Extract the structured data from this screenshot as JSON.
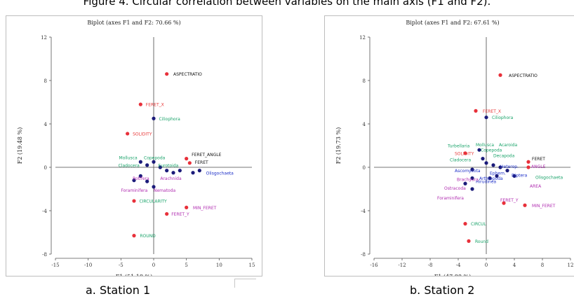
{
  "figure_caption": "Figure 4. Circular correlation between variables on the main axis (F1 and F2).",
  "subcaptions": [
    "a. Station 1",
    "b. Station 2"
  ],
  "colors": {
    "observations": "#e8303a",
    "dark_points": "#1b1b7a",
    "label_black": "#111111",
    "label_red": "#e83a3a",
    "label_green": "#1aa36a",
    "label_blue": "#1c2fc8",
    "label_magenta": "#b02cb0",
    "axis": "#555555",
    "ref_line": "#4a4a4a"
  },
  "chart_data": [
    {
      "type": "scatter",
      "title": "Biplot (axes F1 and F2: 70.66 %)",
      "xlabel": "F1 (51.18 %)",
      "ylabel": "F2 (19.48 %)",
      "xlim": [
        -15,
        15
      ],
      "ylim": [
        -8,
        12
      ],
      "xticks": [
        "-15",
        "-10",
        "-5",
        "0",
        "5",
        "10",
        "15"
      ],
      "yticks": [
        "-8",
        "-4",
        "0",
        "4",
        "8",
        "12"
      ],
      "series": [
        {
          "kind": "observations",
          "points": [
            {
              "x": 2,
              "y": 8.6
            },
            {
              "x": -2,
              "y": 5.8
            },
            {
              "x": -4,
              "y": 3.1
            },
            {
              "x": 5,
              "y": 0.8
            },
            {
              "x": 5.5,
              "y": 0.4
            },
            {
              "x": -3,
              "y": -3.1
            },
            {
              "x": 5,
              "y": -3.7
            },
            {
              "x": 2,
              "y": -4.3
            },
            {
              "x": -3,
              "y": -6.3
            }
          ]
        },
        {
          "kind": "variables",
          "points": [
            {
              "x": 0,
              "y": 4.5
            },
            {
              "x": -2,
              "y": 0.5
            },
            {
              "x": -1,
              "y": 0.2
            },
            {
              "x": 0,
              "y": 0.5
            },
            {
              "x": 1,
              "y": 0
            },
            {
              "x": 2,
              "y": -0.3
            },
            {
              "x": -2,
              "y": -0.8
            },
            {
              "x": -3,
              "y": -1.2
            },
            {
              "x": -1,
              "y": -1.3
            },
            {
              "x": 3,
              "y": -0.5
            },
            {
              "x": 4,
              "y": -0.3
            },
            {
              "x": 6,
              "y": -0.5
            },
            {
              "x": 7,
              "y": -0.3
            },
            {
              "x": 0,
              "y": -1.8
            }
          ]
        }
      ],
      "labels": [
        {
          "text": "ASPECTRATIO",
          "x": 3,
          "y": 8.6,
          "color": "black"
        },
        {
          "text": "FERET_X",
          "x": -1.2,
          "y": 5.8,
          "color": "red"
        },
        {
          "text": "Ciliophora",
          "x": 0.8,
          "y": 4.5,
          "color": "green"
        },
        {
          "text": "SOLIDITY",
          "x": -3.2,
          "y": 3.1,
          "color": "red"
        },
        {
          "text": "FERET_ANGLE",
          "x": 5.8,
          "y": 1.2,
          "color": "black"
        },
        {
          "text": "FERET",
          "x": 6.3,
          "y": 0.5,
          "color": "black"
        },
        {
          "text": "Mollusca",
          "x": -5.3,
          "y": 0.9,
          "color": "green"
        },
        {
          "text": "Copepoda",
          "x": -1.5,
          "y": 0.9,
          "color": "green"
        },
        {
          "text": "Cladocera",
          "x": -5.4,
          "y": 0.2,
          "color": "green"
        },
        {
          "text": "Eurotoida",
          "x": 0.7,
          "y": 0.2,
          "color": "green"
        },
        {
          "text": "Olisgochaeta",
          "x": 8,
          "y": -0.5,
          "color": "blue"
        },
        {
          "text": "Rotifera",
          "x": -3.2,
          "y": -1.0,
          "color": "magenta"
        },
        {
          "text": "Arachnida",
          "x": 1,
          "y": -1.0,
          "color": "magenta"
        },
        {
          "text": "Foraminifera",
          "x": -5,
          "y": -2.1,
          "color": "magenta"
        },
        {
          "text": "Nematoda",
          "x": 0,
          "y": -2.1,
          "color": "magenta"
        },
        {
          "text": "CIRCULARITY",
          "x": -2.2,
          "y": -3.1,
          "color": "green"
        },
        {
          "text": "MIN_FERET",
          "x": 6,
          "y": -3.7,
          "color": "magenta"
        },
        {
          "text": "FERET_Y",
          "x": 2.7,
          "y": -4.3,
          "color": "magenta"
        },
        {
          "text": "ROUND",
          "x": -2.1,
          "y": -6.3,
          "color": "green"
        }
      ]
    },
    {
      "type": "scatter",
      "title": "Biplot (axes F1 and F2: 67.61 %)",
      "xlabel": "F1 (47.88 %)",
      "ylabel": "F2 (19.73 %)",
      "xlim": [
        -16,
        12
      ],
      "ylim": [
        -8,
        12
      ],
      "xticks": [
        "-16",
        "-12",
        "-8",
        "-4",
        "0",
        "4",
        "8",
        "12"
      ],
      "yticks": [
        "-8",
        "-4",
        "0",
        "4",
        "8",
        "12"
      ],
      "series": [
        {
          "kind": "observations",
          "points": [
            {
              "x": 2,
              "y": 8.5
            },
            {
              "x": -1.5,
              "y": 5.2
            },
            {
              "x": -3,
              "y": 1.3
            },
            {
              "x": 6,
              "y": 0.5
            },
            {
              "x": 6,
              "y": 0
            },
            {
              "x": 2.5,
              "y": -3.3
            },
            {
              "x": 5.5,
              "y": -3.5
            },
            {
              "x": -3,
              "y": -5.2
            },
            {
              "x": -2.5,
              "y": -6.8
            }
          ]
        },
        {
          "kind": "variables",
          "points": [
            {
              "x": 0,
              "y": 4.6
            },
            {
              "x": -1,
              "y": 1.6
            },
            {
              "x": -0.5,
              "y": 0.8
            },
            {
              "x": 0,
              "y": 0.4
            },
            {
              "x": 1,
              "y": 0.2
            },
            {
              "x": 2,
              "y": 0
            },
            {
              "x": 3,
              "y": -0.3
            },
            {
              "x": -2,
              "y": -0.2
            },
            {
              "x": -2,
              "y": -1
            },
            {
              "x": -3,
              "y": -1.5
            },
            {
              "x": -2,
              "y": -2
            },
            {
              "x": 0.5,
              "y": -1
            },
            {
              "x": 1.5,
              "y": -0.8
            },
            {
              "x": 4,
              "y": -0.8
            }
          ]
        }
      ],
      "labels": [
        {
          "text": "ASPECTRATIO",
          "x": 3.2,
          "y": 8.5,
          "color": "black"
        },
        {
          "text": "FERET_X",
          "x": -0.5,
          "y": 5.2,
          "color": "red"
        },
        {
          "text": "Ciliophora",
          "x": 0.8,
          "y": 4.6,
          "color": "green"
        },
        {
          "text": "Turbellaria",
          "x": -5.5,
          "y": 2.0,
          "color": "green"
        },
        {
          "text": "Mollusca",
          "x": -1.5,
          "y": 2.1,
          "color": "green"
        },
        {
          "text": "Acaroida",
          "x": 1.8,
          "y": 2.1,
          "color": "green"
        },
        {
          "text": "Copepoda",
          "x": -0.8,
          "y": 1.6,
          "color": "green"
        },
        {
          "text": "SOLIDITY",
          "x": -4.5,
          "y": 1.3,
          "color": "red"
        },
        {
          "text": "Decapoda",
          "x": 1.0,
          "y": 1.1,
          "color": "green"
        },
        {
          "text": "Cladocera",
          "x": -5.2,
          "y": 0.7,
          "color": "green"
        },
        {
          "text": "FERET",
          "x": 6.5,
          "y": 0.8,
          "color": "black"
        },
        {
          "text": "Heterop.",
          "x": 2.0,
          "y": 0.1,
          "color": "blue"
        },
        {
          "text": "ANGLE",
          "x": 6.4,
          "y": 0.1,
          "color": "magenta"
        },
        {
          "text": "Ascomycota",
          "x": -4.5,
          "y": -0.3,
          "color": "blue"
        },
        {
          "text": "Ephem.",
          "x": 0.5,
          "y": -0.5,
          "color": "blue"
        },
        {
          "text": "Arthropoda",
          "x": -1.0,
          "y": -1.0,
          "color": "blue"
        },
        {
          "text": "Diptera",
          "x": 3.6,
          "y": -0.7,
          "color": "blue"
        },
        {
          "text": "Olisgochaeta",
          "x": 7.0,
          "y": -0.9,
          "color": "green"
        },
        {
          "text": "Hirudinea",
          "x": -1.5,
          "y": -1.3,
          "color": "blue"
        },
        {
          "text": "Brachyura",
          "x": -4.2,
          "y": -1.1,
          "color": "magenta"
        },
        {
          "text": "AREA",
          "x": 6.2,
          "y": -1.7,
          "color": "magenta"
        },
        {
          "text": "Ostracoda",
          "x": -6,
          "y": -1.9,
          "color": "magenta"
        },
        {
          "text": "Foraminifera",
          "x": -7,
          "y": -2.8,
          "color": "magenta"
        },
        {
          "text": "FERET_Y",
          "x": 2,
          "y": -3.0,
          "color": "magenta"
        },
        {
          "text": "MIN_FERET",
          "x": 6.5,
          "y": -3.5,
          "color": "magenta"
        },
        {
          "text": "CIRCUL",
          "x": -2.2,
          "y": -5.2,
          "color": "green"
        },
        {
          "text": "Round",
          "x": -1.6,
          "y": -6.8,
          "color": "green"
        }
      ]
    }
  ]
}
